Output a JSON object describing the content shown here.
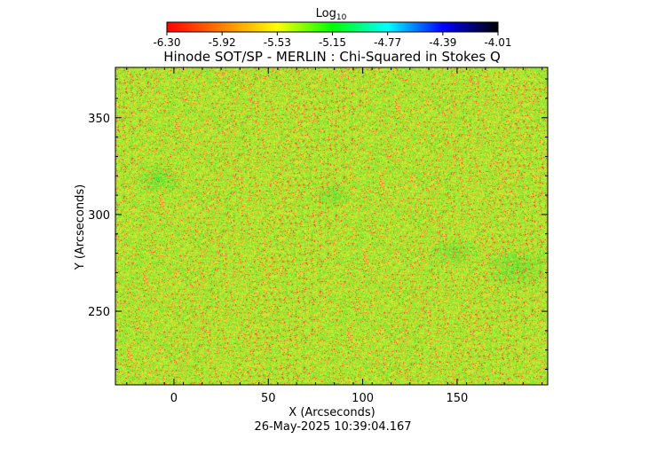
{
  "colorbar": {
    "label_main": "Log",
    "label_sub": "10",
    "ticks": [
      "-6.30",
      "-5.92",
      "-5.53",
      "-5.15",
      "-4.77",
      "-4.39",
      "-4.01"
    ],
    "range": [
      -6.3,
      -4.01
    ],
    "colormap": [
      "#ff0000",
      "#ff8000",
      "#ffff00",
      "#00ff00",
      "#00ffff",
      "#0000ff",
      "#000000"
    ]
  },
  "chart_data": {
    "type": "heatmap",
    "title": "Hinode SOT/SP - MERLIN : Chi-Squared in Stokes Q",
    "xlabel": "X (Arcseconds)",
    "ylabel": "Y (Arcseconds)",
    "xlim": [
      -31,
      198
    ],
    "ylim": [
      212,
      376
    ],
    "xticks": [
      0,
      50,
      100,
      150
    ],
    "yticks": [
      250,
      300,
      350
    ],
    "xtick_labels": [
      "0",
      "50",
      "100",
      "150"
    ],
    "ytick_labels": [
      "250",
      "300",
      "350"
    ],
    "value_range": [
      -6.3,
      -4.01
    ],
    "dominant_colors": [
      "#b4e632",
      "#e6e632",
      "#46e632"
    ]
  },
  "footer": {
    "timestamp": "26-May-2025 10:39:04.167"
  }
}
